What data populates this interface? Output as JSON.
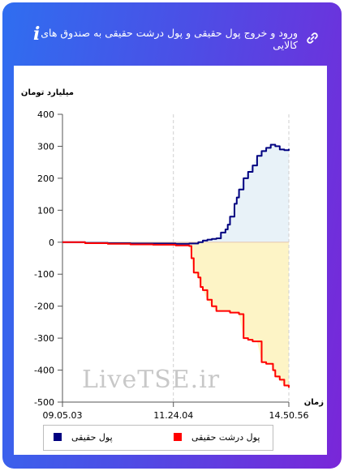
{
  "header": {
    "title": "ورود و خروج پول حقیقی و پول درشت حقیقی به صندوق های کالایی",
    "info_icon": "i",
    "link_icon": "link-icon"
  },
  "watermark": "LiveTSE.ir",
  "colors": {
    "real_money": "#000080",
    "big_real_money": "#ff0000",
    "real_money_fill": "#e8f2f8",
    "big_real_money_fill": "#fdf4c6"
  },
  "chart_data": {
    "type": "line",
    "ylabel": "میلیارد تومان",
    "xlabel": "زمان",
    "ylim": [
      -500,
      400
    ],
    "yticks": [
      400,
      300,
      200,
      100,
      0,
      -100,
      -200,
      -300,
      -400,
      -500
    ],
    "xtick_labels": [
      "09.05.03",
      "11.24.04",
      "14.50.56"
    ],
    "xlim_index": [
      0,
      100
    ],
    "xtick_positions": [
      0,
      49,
      100
    ],
    "legend_position": "bottom",
    "series": [
      {
        "name": "پول حقیقی",
        "color": "#000080",
        "x": [
          0,
          10,
          20,
          30,
          40,
          50,
          56,
          60,
          62,
          64,
          66,
          68,
          70,
          72,
          73,
          74,
          76,
          77,
          78,
          80,
          82,
          84,
          86,
          88,
          90,
          92,
          94,
          96,
          98,
          100
        ],
        "y": [
          0,
          -2,
          -3,
          -4,
          -4,
          -5,
          -4,
          0,
          5,
          8,
          10,
          12,
          30,
          40,
          55,
          80,
          120,
          140,
          165,
          200,
          220,
          240,
          270,
          285,
          295,
          305,
          300,
          290,
          288,
          292
        ]
      },
      {
        "name": "پول درشت حقیقی",
        "color": "#ff0000",
        "x": [
          0,
          10,
          20,
          30,
          40,
          50,
          56,
          57,
          58,
          60,
          61,
          62,
          64,
          66,
          68,
          72,
          74,
          76,
          78,
          80,
          82,
          84,
          86,
          88,
          90,
          92,
          93,
          94,
          96,
          98,
          100
        ],
        "y": [
          0,
          -3,
          -5,
          -7,
          -8,
          -10,
          -12,
          -50,
          -95,
          -110,
          -140,
          -150,
          -180,
          -200,
          -215,
          -215,
          -220,
          -220,
          -225,
          -300,
          -305,
          -310,
          -310,
          -375,
          -380,
          -380,
          -400,
          -420,
          -430,
          -448,
          -455
        ]
      }
    ]
  }
}
